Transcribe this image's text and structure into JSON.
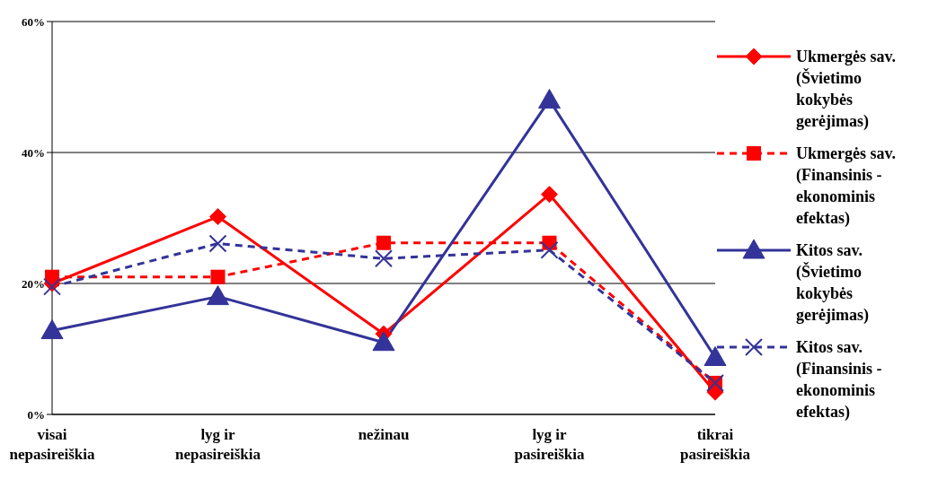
{
  "chart_data": {
    "type": "line",
    "categories": [
      "visai nepasireiškia",
      "lyg ir nepasireiškia",
      "nežinau",
      "lyg ir pasireiškia",
      "tikrai pasireiškia"
    ],
    "ylim": [
      0,
      60
    ],
    "yticks": [
      {
        "value": 0,
        "label": "0%"
      },
      {
        "value": 20,
        "label": "20%"
      },
      {
        "value": 40,
        "label": "40%"
      },
      {
        "value": 60,
        "label": "60%"
      }
    ],
    "grid": "y",
    "legend": "right",
    "series": [
      {
        "name": "Ukmergės sav. (Švietimo kokybės gerėjimas)",
        "color": "#ff0000",
        "marker": "diamond",
        "line_style": "solid",
        "values": [
          20,
          30.2,
          12.3,
          33.6,
          3.4
        ]
      },
      {
        "name": "Ukmergės sav. (Finansinis - ekonominis efektas)",
        "color": "#ff0000",
        "marker": "square",
        "line_style": "dashed",
        "values": [
          21,
          21,
          26.2,
          26.2,
          4.8
        ]
      },
      {
        "name": "Kitos sav. (Švietimo kokybės gerėjimas)",
        "color": "#333399",
        "marker": "triangle",
        "line_style": "solid",
        "values": [
          12.8,
          18,
          11,
          48,
          8.7
        ]
      },
      {
        "name": "Kitos sav. (Finansinis - ekonominis efektas)",
        "color": "#333399",
        "marker": "cross",
        "line_style": "dashed",
        "values": [
          19.5,
          26.1,
          23.8,
          25.1,
          4.8
        ]
      }
    ]
  }
}
